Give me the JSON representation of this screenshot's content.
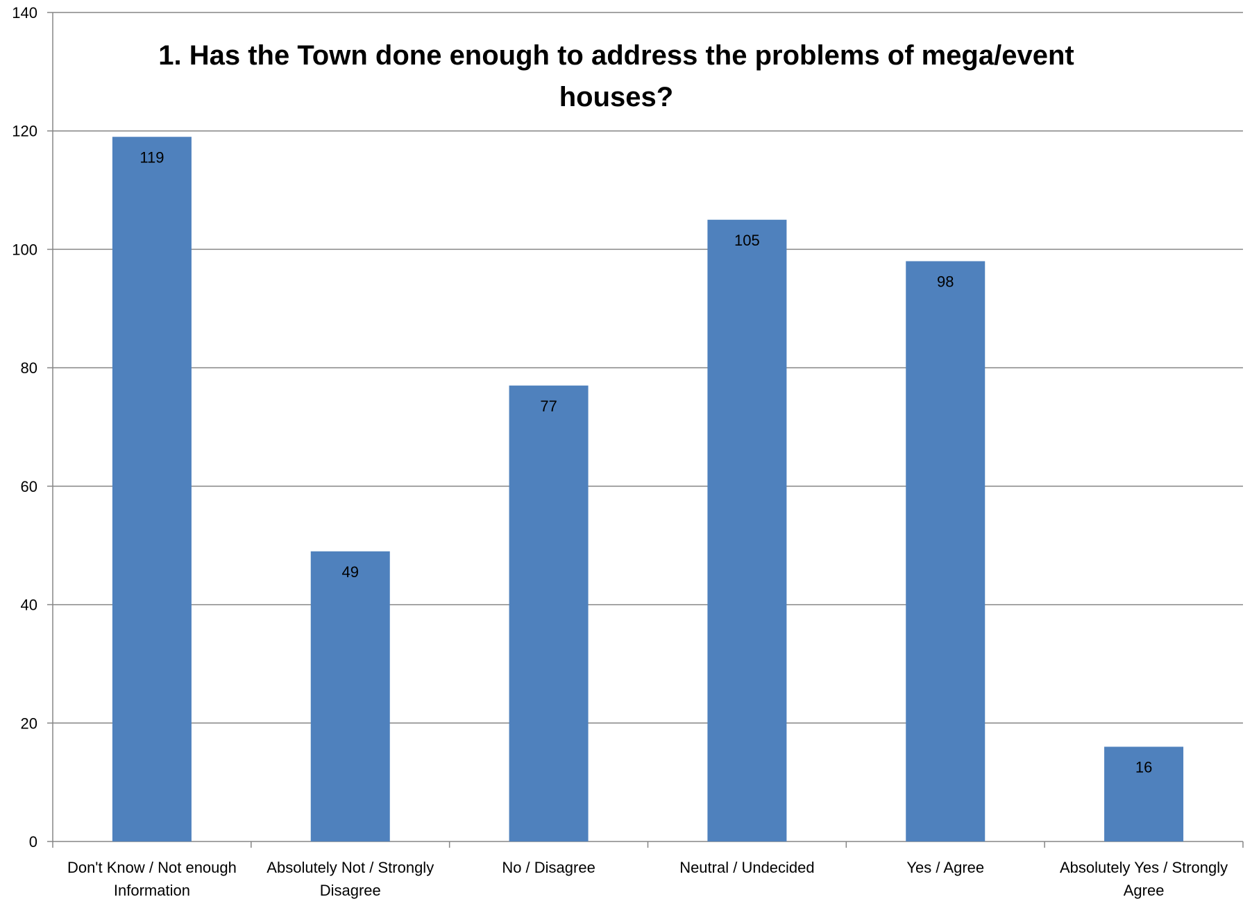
{
  "chart_data": {
    "type": "bar",
    "title_lines": [
      "1. Has the Town done enough to address the problems of mega/event",
      "houses?"
    ],
    "xlabel": "",
    "ylabel": "",
    "categories": [
      [
        "Don't Know / Not enough",
        "Information"
      ],
      [
        "Absolutely Not  / Strongly",
        "Disagree"
      ],
      [
        "No / Disagree"
      ],
      [
        "Neutral / Undecided"
      ],
      [
        "Yes / Agree"
      ],
      [
        "Absolutely Yes / Strongly",
        "Agree"
      ]
    ],
    "values": [
      119,
      49,
      77,
      105,
      98,
      16
    ],
    "data_labels": [
      "119",
      "49",
      "77",
      "105",
      "98",
      "16"
    ],
    "ylim": [
      0,
      140
    ],
    "y_ticks": [
      0,
      20,
      40,
      60,
      80,
      100,
      120,
      140
    ],
    "grid": true,
    "legend": "none",
    "colors": {
      "bar": "#4F81BD",
      "grid": "#868686",
      "axis": "#868686"
    }
  }
}
